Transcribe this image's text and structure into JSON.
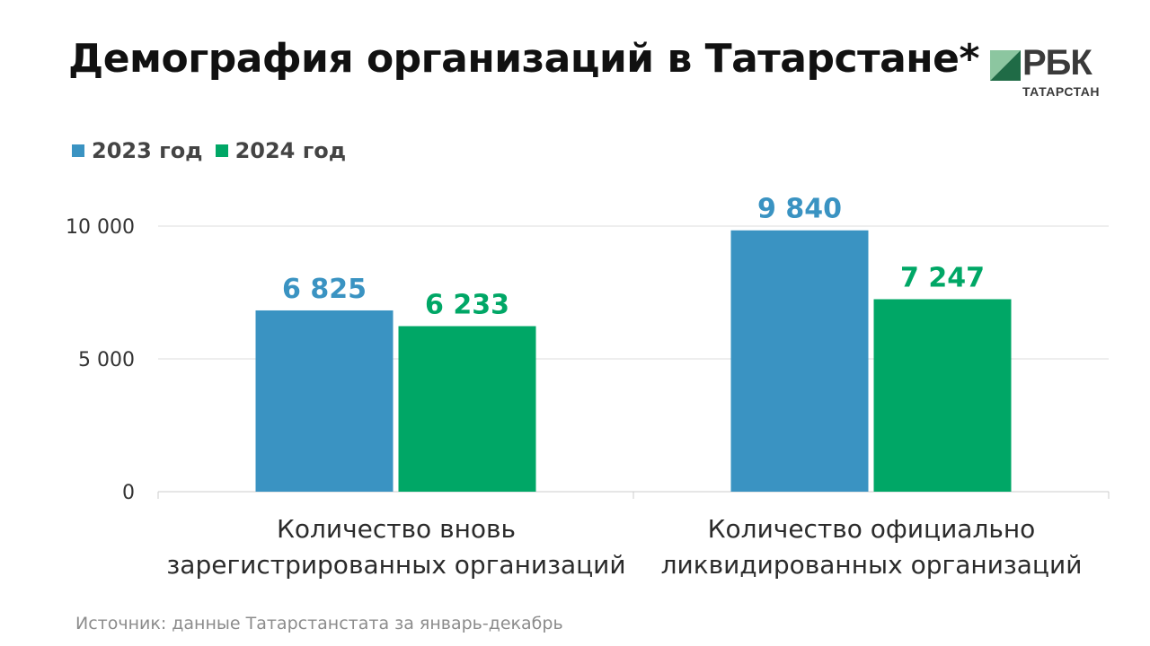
{
  "title": "Демография организаций в Татарстане*",
  "logo": {
    "main": "РБК",
    "sub": "ТАТАРСТАН"
  },
  "colors": {
    "series_2023": "#3a93c2",
    "series_2024": "#00a766",
    "grid": "#dddddd",
    "axis": "#cccccc"
  },
  "source": "Источник: данные Татарстанстата за январь-декабрь",
  "chart_data": {
    "type": "bar",
    "title": "Демография организаций в Татарстане*",
    "categories": [
      "Количество вновь зарегистрированных организаций",
      "Количество официально ликвидированных организаций"
    ],
    "category_lines": [
      [
        "Количество вновь",
        "зарегистрированных организаций"
      ],
      [
        "Количество официально",
        "ликвидированных организаций"
      ]
    ],
    "series": [
      {
        "name": "2023 год",
        "values": [
          6825,
          9840
        ],
        "labels": [
          "6 825",
          "9 840"
        ]
      },
      {
        "name": "2024 год",
        "values": [
          6233,
          7247
        ],
        "labels": [
          "6 233",
          "7 247"
        ]
      }
    ],
    "yticks": [
      0,
      5000,
      10000
    ],
    "ytick_labels": [
      "0",
      "5 000",
      "10 000"
    ],
    "ylim": [
      0,
      10000
    ],
    "grid": true,
    "legend": "top-left"
  }
}
